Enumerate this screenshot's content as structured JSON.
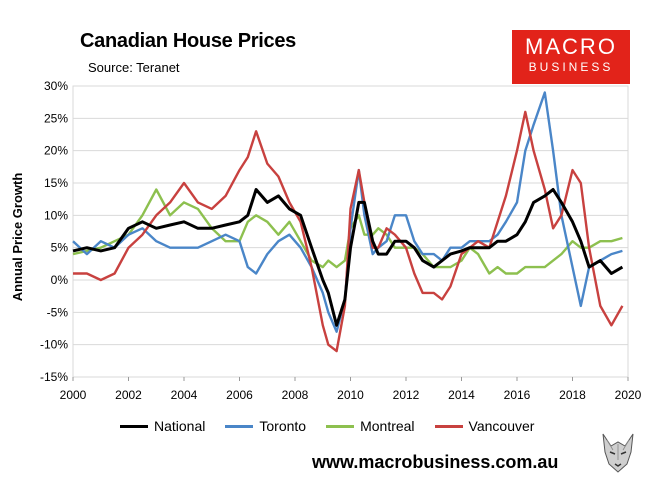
{
  "header": {
    "title": "Canadian House Prices",
    "source": "Source: Teranet"
  },
  "logo": {
    "line1": "MACRO",
    "line2": "BUSINESS",
    "color": "#e2231a"
  },
  "footer": {
    "url": "www.macrobusiness.com.au"
  },
  "chart_data": {
    "type": "line",
    "title": "Canadian House Prices",
    "ylabel": "Annual Price Growth",
    "xlabel": "",
    "ylim": [
      -15,
      30
    ],
    "xlim": [
      2000,
      2020
    ],
    "yticks": [
      "30%",
      "25%",
      "20%",
      "15%",
      "10%",
      "5%",
      "0%",
      "-5%",
      "-10%",
      "-15%"
    ],
    "ytick_values": [
      30,
      25,
      20,
      15,
      10,
      5,
      0,
      -5,
      -10,
      -15
    ],
    "xticks": [
      "2000",
      "2002",
      "2004",
      "2006",
      "2008",
      "2010",
      "2012",
      "2014",
      "2016",
      "2018",
      "2020"
    ],
    "xtick_values": [
      2000,
      2002,
      2004,
      2006,
      2008,
      2010,
      2012,
      2014,
      2016,
      2018,
      2020
    ],
    "grid": true,
    "legend": "bottom",
    "series": [
      {
        "name": "National",
        "color": "#000000",
        "x": [
          2000,
          2000.5,
          2001,
          2001.5,
          2002,
          2002.5,
          2003,
          2003.5,
          2004,
          2004.5,
          2005,
          2005.5,
          2006,
          2006.3,
          2006.6,
          2007,
          2007.4,
          2007.8,
          2008.2,
          2008.6,
          2009,
          2009.2,
          2009.5,
          2009.8,
          2010,
          2010.3,
          2010.5,
          2010.8,
          2011,
          2011.3,
          2011.6,
          2012,
          2012.3,
          2012.6,
          2013,
          2013.3,
          2013.6,
          2014,
          2014.3,
          2014.6,
          2015,
          2015.3,
          2015.6,
          2016,
          2016.3,
          2016.6,
          2017,
          2017.3,
          2017.6,
          2018,
          2018.3,
          2018.6,
          2019,
          2019.4,
          2019.8
        ],
        "values": [
          4.5,
          5,
          4.5,
          5,
          8,
          9,
          8,
          8.5,
          9,
          8,
          8,
          8.5,
          9,
          10,
          14,
          12,
          13,
          11,
          10,
          5,
          0,
          -2,
          -7,
          -3,
          5,
          12,
          12,
          6,
          4,
          4,
          6,
          6,
          5,
          3,
          2,
          3,
          4,
          4.5,
          5,
          5,
          5,
          6,
          6,
          7,
          9,
          12,
          13,
          14,
          12,
          9,
          6,
          2,
          3,
          1,
          2
        ]
      },
      {
        "name": "Toronto",
        "color": "#4a86c8",
        "x": [
          2000,
          2000.5,
          2001,
          2001.5,
          2002,
          2002.5,
          2003,
          2003.5,
          2004,
          2004.5,
          2005,
          2005.5,
          2006,
          2006.3,
          2006.6,
          2007,
          2007.4,
          2007.8,
          2008.2,
          2008.6,
          2009,
          2009.2,
          2009.5,
          2009.8,
          2010,
          2010.3,
          2010.5,
          2010.8,
          2011,
          2011.3,
          2011.6,
          2012,
          2012.3,
          2012.6,
          2013,
          2013.3,
          2013.6,
          2014,
          2014.3,
          2014.6,
          2015,
          2015.3,
          2015.6,
          2016,
          2016.3,
          2016.6,
          2017,
          2017.3,
          2017.6,
          2018,
          2018.3,
          2018.6,
          2019,
          2019.4,
          2019.8
        ],
        "values": [
          6,
          4,
          6,
          5,
          7,
          8,
          6,
          5,
          5,
          5,
          6,
          7,
          6,
          2,
          1,
          4,
          6,
          7,
          5,
          2,
          -2,
          -5,
          -8,
          -3,
          8,
          17,
          10,
          4,
          5,
          6,
          10,
          10,
          6,
          4,
          4,
          3,
          5,
          5,
          6,
          6,
          6,
          7,
          9,
          12,
          20,
          24,
          29,
          20,
          10,
          2,
          -4,
          2,
          3,
          4,
          4.5
        ]
      },
      {
        "name": "Montreal",
        "color": "#8dc04f",
        "x": [
          2000,
          2000.5,
          2001,
          2001.5,
          2002,
          2002.5,
          2003,
          2003.5,
          2004,
          2004.5,
          2005,
          2005.5,
          2006,
          2006.3,
          2006.6,
          2007,
          2007.4,
          2007.8,
          2008.2,
          2008.6,
          2009,
          2009.2,
          2009.5,
          2009.8,
          2010,
          2010.3,
          2010.5,
          2010.8,
          2011,
          2011.3,
          2011.6,
          2012,
          2012.3,
          2012.6,
          2013,
          2013.3,
          2013.6,
          2014,
          2014.3,
          2014.6,
          2015,
          2015.3,
          2015.6,
          2016,
          2016.3,
          2016.6,
          2017,
          2017.3,
          2017.6,
          2018,
          2018.3,
          2018.6,
          2019,
          2019.4,
          2019.8
        ],
        "values": [
          4,
          4.5,
          5,
          6,
          7,
          10,
          14,
          10,
          12,
          11,
          8,
          6,
          6,
          9,
          10,
          9,
          7,
          9,
          6,
          3,
          2,
          3,
          2,
          3,
          8,
          10,
          7,
          7,
          8,
          7,
          5,
          5,
          5,
          4,
          2,
          2,
          2,
          3,
          5,
          4,
          1,
          2,
          1,
          1,
          2,
          2,
          2,
          3,
          4,
          6,
          5,
          5,
          6,
          6,
          6.5
        ]
      },
      {
        "name": "Vancouver",
        "color": "#c8413f",
        "x": [
          2000,
          2000.5,
          2001,
          2001.5,
          2002,
          2002.5,
          2003,
          2003.5,
          2004,
          2004.5,
          2005,
          2005.5,
          2006,
          2006.3,
          2006.6,
          2007,
          2007.4,
          2007.8,
          2008.2,
          2008.6,
          2009,
          2009.2,
          2009.5,
          2009.8,
          2010,
          2010.3,
          2010.5,
          2010.8,
          2011,
          2011.3,
          2011.6,
          2012,
          2012.3,
          2012.6,
          2013,
          2013.3,
          2013.6,
          2014,
          2014.3,
          2014.6,
          2015,
          2015.3,
          2015.6,
          2016,
          2016.3,
          2016.6,
          2017,
          2017.3,
          2017.6,
          2018,
          2018.3,
          2018.6,
          2019,
          2019.4,
          2019.8
        ],
        "values": [
          1,
          1,
          0,
          1,
          5,
          7,
          10,
          12,
          15,
          12,
          11,
          13,
          17,
          19,
          23,
          18,
          16,
          12,
          9,
          2,
          -7,
          -10,
          -11,
          -4,
          11,
          17,
          12,
          5,
          5,
          8,
          7,
          5,
          1,
          -2,
          -2,
          -3,
          -1,
          4,
          5,
          6,
          5,
          9,
          13,
          20,
          26,
          20,
          14,
          8,
          10,
          17,
          15,
          5,
          -4,
          -7,
          -4
        ]
      }
    ]
  }
}
